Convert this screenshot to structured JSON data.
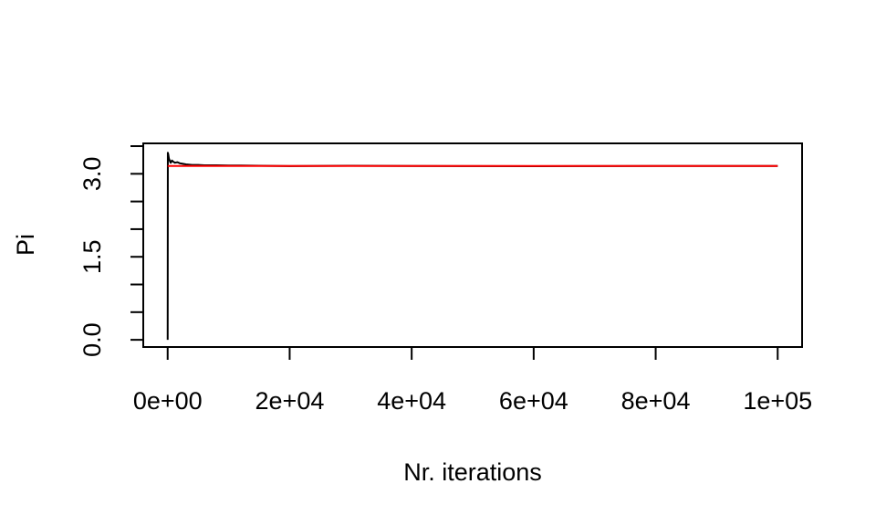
{
  "chart_data": {
    "type": "line",
    "title": "",
    "xlabel": "Nr. iterations",
    "ylabel": "Pi",
    "xlim": [
      -4000,
      104000
    ],
    "ylim": [
      -0.13,
      3.55
    ],
    "x_ticks": [
      0,
      20000,
      40000,
      60000,
      80000,
      100000
    ],
    "x_tick_labels": [
      "0e+00",
      "2e+04",
      "4e+04",
      "6e+04",
      "8e+04",
      "1e+05"
    ],
    "y_ticks": [
      0,
      0.5,
      1,
      1.5,
      2,
      2.5,
      3,
      3.5
    ],
    "y_tick_labels": [
      "0.0",
      "",
      "",
      "1.5",
      "",
      "",
      "3.0",
      ""
    ],
    "grid": false,
    "series": [
      {
        "color": "#000000",
        "x": [
          1,
          30,
          100,
          200,
          300,
          400,
          500,
          700,
          900,
          1200,
          1600,
          2000,
          2500,
          3000,
          4000,
          5000,
          6000,
          8000,
          10000,
          12000,
          15000,
          20000,
          30000,
          40000,
          50000,
          60000,
          70000,
          80000,
          90000,
          100000
        ],
        "y": [
          0.0,
          3.38,
          3.35,
          3.28,
          3.25,
          3.22,
          3.2,
          3.24,
          3.22,
          3.2,
          3.21,
          3.19,
          3.18,
          3.17,
          3.16,
          3.16,
          3.155,
          3.155,
          3.15,
          3.15,
          3.145,
          3.14,
          3.145,
          3.142,
          3.14,
          3.138,
          3.14,
          3.141,
          3.141,
          3.141
        ]
      },
      {
        "color": "#ff0000",
        "x": [
          0,
          100000
        ],
        "y": [
          3.14159,
          3.14159
        ]
      }
    ]
  }
}
